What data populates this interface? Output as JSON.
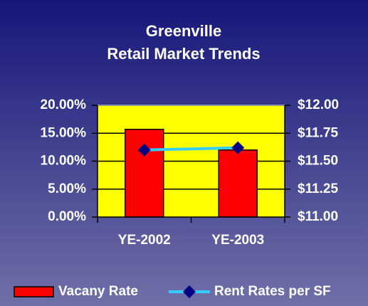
{
  "chart_data": {
    "type": "bar",
    "title": "Greenville",
    "subtitle": "Retail Market Trends",
    "categories": [
      "YE-2002",
      "YE-2003"
    ],
    "series": [
      {
        "name": "Vacany Rate",
        "type": "bar",
        "color": "#ff0000",
        "values": [
          15.7,
          12.0
        ]
      },
      {
        "name": "Rent Rates per SF",
        "type": "line",
        "axis": "y2",
        "color": "#33ccff",
        "marker_color": "#000080",
        "values": [
          11.6,
          11.62
        ]
      }
    ],
    "ylim": [
      0,
      20
    ],
    "yticks": [
      {
        "value": 0,
        "label": "0.00%"
      },
      {
        "value": 5,
        "label": "5.00%"
      },
      {
        "value": 10,
        "label": "10.00%"
      },
      {
        "value": 15,
        "label": "15.00%"
      },
      {
        "value": 20,
        "label": "20.00%"
      }
    ],
    "y2lim": [
      11,
      12
    ],
    "y2ticks": [
      {
        "value": 11,
        "label": "$11.00"
      },
      {
        "value": 11.25,
        "label": "$11.25"
      },
      {
        "value": 11.5,
        "label": "$11.50"
      },
      {
        "value": 11.75,
        "label": "$11.75"
      },
      {
        "value": 12,
        "label": "$12.00"
      }
    ],
    "grid": true,
    "legend": "bottom"
  }
}
